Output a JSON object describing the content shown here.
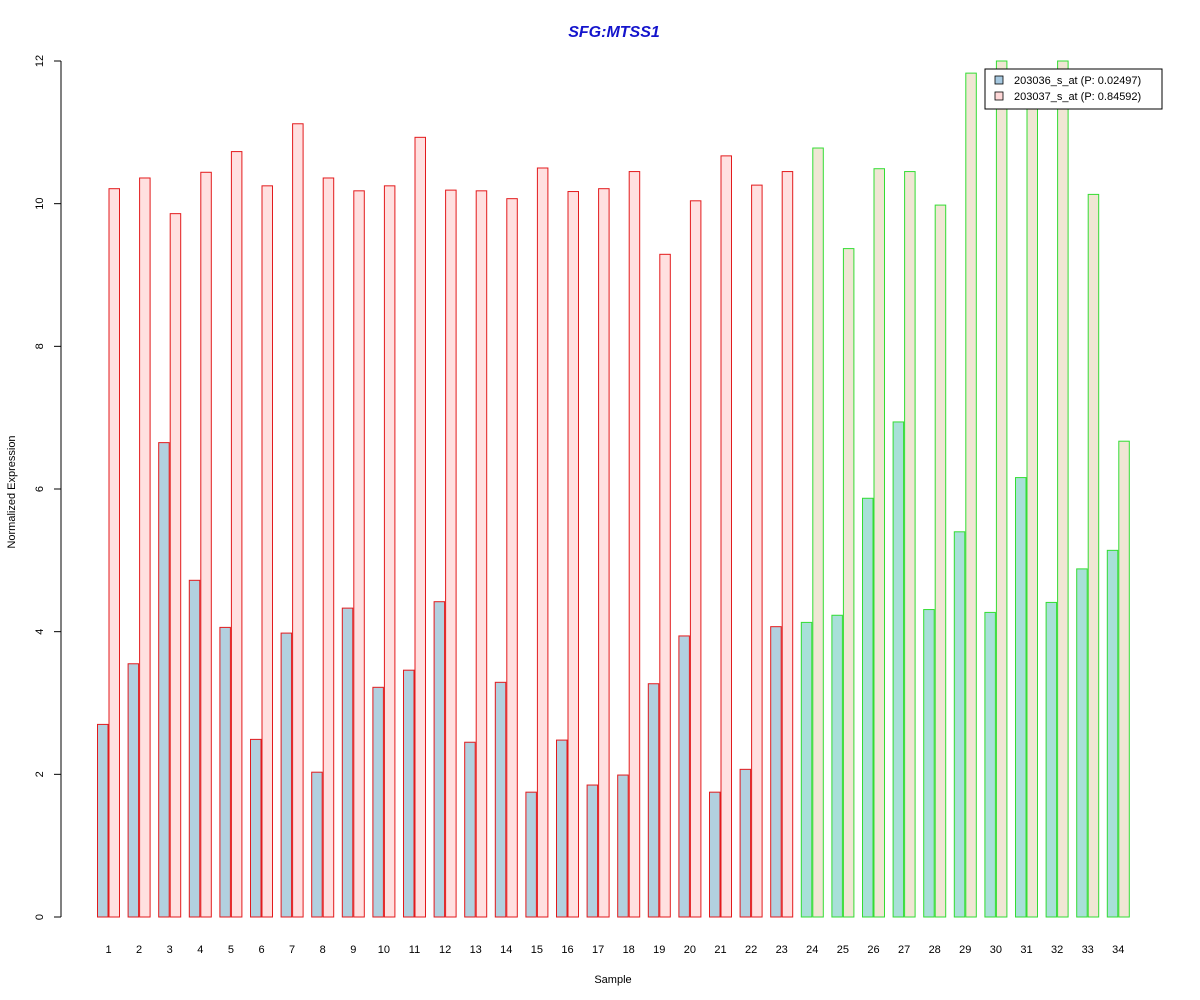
{
  "chart_data": {
    "type": "bar",
    "title": "SFG:MTSS1",
    "xlabel": "Sample",
    "ylabel": "Normalized Expression",
    "ylim": [
      0,
      12
    ],
    "yticks": [
      0,
      2,
      4,
      6,
      8,
      10,
      12
    ],
    "grid": false,
    "legend_position": "top-right",
    "categories": [
      "1",
      "2",
      "3",
      "4",
      "5",
      "6",
      "7",
      "8",
      "9",
      "10",
      "11",
      "12",
      "13",
      "14",
      "15",
      "16",
      "17",
      "18",
      "19",
      "20",
      "21",
      "22",
      "23",
      "24",
      "25",
      "26",
      "27",
      "28",
      "29",
      "30",
      "31",
      "32",
      "33",
      "34"
    ],
    "series": [
      {
        "name": "203036_s_at (P: 0.02497)",
        "values": [
          2.7,
          3.55,
          6.65,
          4.72,
          4.06,
          2.49,
          3.98,
          2.03,
          4.33,
          3.22,
          3.46,
          4.42,
          2.45,
          3.29,
          1.75,
          2.48,
          1.85,
          1.99,
          3.27,
          3.94,
          1.75,
          2.07,
          4.07,
          4.13,
          4.23,
          5.87,
          6.94,
          4.31,
          5.4,
          4.27,
          6.16,
          4.41,
          4.88,
          5.14
        ]
      },
      {
        "name": "203037_s_at (P: 0.84592)",
        "values": [
          10.21,
          10.36,
          9.86,
          10.44,
          10.73,
          10.25,
          11.12,
          10.36,
          10.18,
          10.25,
          10.93,
          10.19,
          10.18,
          10.07,
          10.5,
          10.17,
          10.21,
          10.45,
          9.29,
          10.04,
          10.67,
          10.26,
          10.45,
          10.78,
          9.37,
          10.49,
          10.45,
          9.98,
          11.83,
          12.0,
          11.53,
          12.0,
          10.13,
          6.67
        ]
      }
    ],
    "group_boundary_index": 23,
    "colors": {
      "group1_outline": "#e31a1c",
      "group2_outline": "#33dd33",
      "series1_fill_group1": "#b2d0df",
      "series2_fill_group1": "#ffe0e0",
      "series1_fill_group2": "#a8e0d8",
      "series2_fill_group2": "#f0e6d4",
      "legend_swatch_1": "#a6c8e0",
      "legend_swatch_2": "#ffd8d8",
      "title": "#1414cc"
    }
  }
}
